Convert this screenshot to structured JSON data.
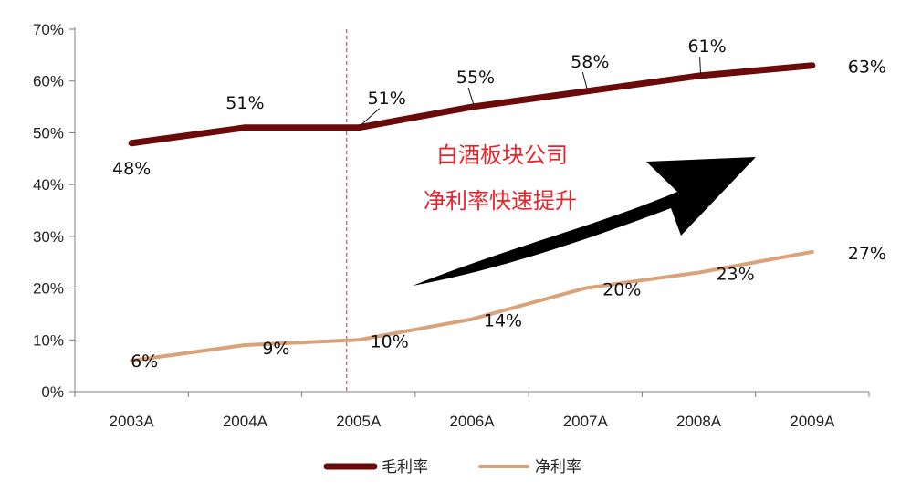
{
  "chart_data": {
    "type": "line",
    "categories": [
      "2003A",
      "2004A",
      "2005A",
      "2006A",
      "2007A",
      "2008A",
      "2009A"
    ],
    "series": [
      {
        "name": "毛利率",
        "values": [
          48,
          51,
          51,
          55,
          58,
          61,
          63
        ],
        "labels": [
          "48%",
          "51%",
          "51%",
          "55%",
          "58%",
          "61%",
          "63%"
        ],
        "color": "#6b0a0a"
      },
      {
        "name": "净利率",
        "values": [
          6,
          9,
          10,
          14,
          20,
          23,
          27
        ],
        "labels": [
          "6%",
          "9%",
          "10%",
          "14%",
          "20%",
          "23%",
          "27%"
        ],
        "color": "#d9a27a"
      }
    ],
    "ylim": [
      0,
      70
    ],
    "yticks": [
      0,
      10,
      20,
      30,
      40,
      50,
      60,
      70
    ],
    "ytick_labels": [
      "0%",
      "10%",
      "20%",
      "30%",
      "40%",
      "50%",
      "60%",
      "70%"
    ],
    "divider_category": "2005A",
    "divider_color": "#d9534f",
    "annotation": [
      "白酒板块公司",
      "净利率快速提升"
    ],
    "annotation_color": "#e8232a",
    "arrow_color": "#000000",
    "legend_position": "bottom",
    "grid": false
  }
}
